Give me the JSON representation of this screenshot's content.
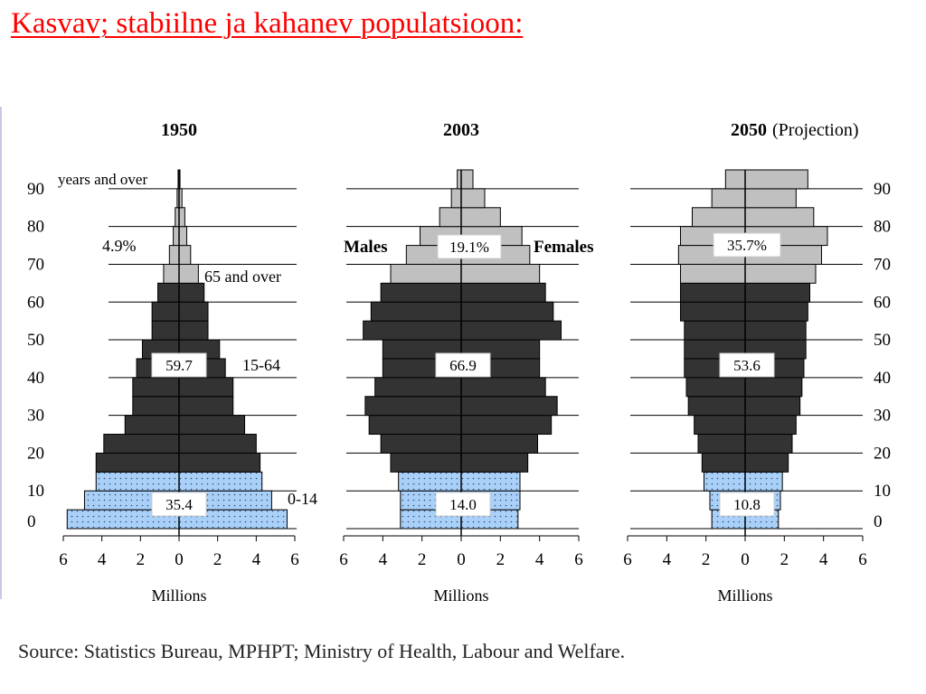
{
  "slide": {
    "title": "Kasvav; stabiilne ja kahanev populatsioon:",
    "source": "Source:  Statistics Bureau, MPHPT;  Ministry of Health, Labour and Welfare."
  },
  "colors": {
    "title": "#ff0000",
    "child_fill": "#a8d0f8",
    "working_fill": "#333333",
    "elderly_fill": "#c0c0c0"
  },
  "chart_data": [
    {
      "type": "bar",
      "orientation": "horizontal-pyramid",
      "year": "1950",
      "subtitle": "",
      "xlabel": "Millions",
      "x_ticks": [
        "6",
        "4",
        "2",
        "0",
        "2",
        "4",
        "6"
      ],
      "xlim": [
        -6,
        6
      ],
      "age_ticks": [
        "90",
        "80",
        "70",
        "60",
        "50",
        "40",
        "30",
        "20",
        "10",
        "0"
      ],
      "tick_label_side": "left",
      "age_groups": [
        "0-4",
        "5-9",
        "10-14",
        "15-19",
        "20-24",
        "25-29",
        "30-34",
        "35-39",
        "40-44",
        "45-49",
        "50-54",
        "55-59",
        "60-64",
        "65-69",
        "70-74",
        "75-79",
        "80-84",
        "85-89",
        "90+"
      ],
      "males": [
        5.8,
        4.9,
        4.3,
        4.3,
        3.9,
        2.8,
        2.4,
        2.4,
        2.2,
        1.9,
        1.4,
        1.4,
        1.1,
        0.8,
        0.5,
        0.3,
        0.2,
        0.1,
        0.05
      ],
      "females": [
        5.6,
        4.8,
        4.3,
        4.2,
        4.0,
        3.4,
        2.8,
        2.8,
        2.4,
        2.1,
        1.5,
        1.5,
        1.3,
        1.0,
        0.6,
        0.4,
        0.3,
        0.15,
        0.05
      ],
      "groups": [
        {
          "range": [
            0,
            3
          ],
          "fill": "child",
          "value_label": "35.4"
        },
        {
          "range": [
            3,
            13
          ],
          "fill": "working",
          "value_label": "59.7"
        },
        {
          "range": [
            13,
            19
          ],
          "fill": "elderly",
          "value_label": "4.9%"
        }
      ],
      "annotations": [
        "0-14",
        "15-64",
        "65 and over",
        "years and over"
      ]
    },
    {
      "type": "bar",
      "orientation": "horizontal-pyramid",
      "year": "2003",
      "subtitle": "",
      "xlabel": "Millions",
      "x_ticks": [
        "6",
        "4",
        "2",
        "0",
        "2",
        "4",
        "6"
      ],
      "xlim": [
        -6,
        6
      ],
      "age_ticks": [],
      "tick_label_side": "none",
      "age_groups": [
        "0-4",
        "5-9",
        "10-14",
        "15-19",
        "20-24",
        "25-29",
        "30-34",
        "35-39",
        "40-44",
        "45-49",
        "50-54",
        "55-59",
        "60-64",
        "65-69",
        "70-74",
        "75-79",
        "80-84",
        "85-89",
        "90+"
      ],
      "males": [
        3.1,
        3.1,
        3.2,
        3.6,
        4.1,
        4.7,
        4.9,
        4.4,
        4.0,
        4.0,
        5.0,
        4.6,
        4.1,
        3.6,
        2.8,
        2.1,
        1.1,
        0.5,
        0.2
      ],
      "females": [
        2.9,
        3.0,
        3.0,
        3.4,
        3.9,
        4.6,
        4.9,
        4.3,
        4.0,
        4.0,
        5.1,
        4.7,
        4.3,
        4.0,
        3.5,
        3.1,
        2.0,
        1.2,
        0.6
      ],
      "groups": [
        {
          "range": [
            0,
            3
          ],
          "fill": "child",
          "value_label": "14.0"
        },
        {
          "range": [
            3,
            13
          ],
          "fill": "working",
          "value_label": "66.9"
        },
        {
          "range": [
            13,
            19
          ],
          "fill": "elderly",
          "value_label": "19.1%"
        }
      ],
      "annotations": [
        "Males",
        "Females"
      ]
    },
    {
      "type": "bar",
      "orientation": "horizontal-pyramid",
      "year": "2050",
      "subtitle": "(Projection)",
      "xlabel": "Millions",
      "x_ticks": [
        "6",
        "4",
        "2",
        "0",
        "2",
        "4",
        "6"
      ],
      "xlim": [
        -6,
        6
      ],
      "age_ticks": [
        "90",
        "80",
        "70",
        "60",
        "50",
        "40",
        "30",
        "20",
        "10",
        "0"
      ],
      "tick_label_side": "right",
      "age_groups": [
        "0-4",
        "5-9",
        "10-14",
        "15-19",
        "20-24",
        "25-29",
        "30-34",
        "35-39",
        "40-44",
        "45-49",
        "50-54",
        "55-59",
        "60-64",
        "65-69",
        "70-74",
        "75-79",
        "80-84",
        "85-89",
        "90+"
      ],
      "males": [
        1.7,
        1.8,
        2.1,
        2.2,
        2.4,
        2.6,
        2.9,
        3.0,
        3.1,
        3.1,
        3.1,
        3.3,
        3.3,
        3.3,
        3.4,
        3.3,
        2.7,
        1.7,
        1.0
      ],
      "females": [
        1.7,
        1.8,
        1.9,
        2.2,
        2.4,
        2.6,
        2.8,
        2.9,
        3.0,
        3.1,
        3.1,
        3.2,
        3.3,
        3.6,
        3.9,
        4.2,
        3.5,
        2.6,
        3.2
      ],
      "groups": [
        {
          "range": [
            0,
            3
          ],
          "fill": "child",
          "value_label": "10.8"
        },
        {
          "range": [
            3,
            13
          ],
          "fill": "working",
          "value_label": "53.6"
        },
        {
          "range": [
            13,
            19
          ],
          "fill": "elderly",
          "value_label": "35.7%"
        }
      ],
      "annotations": []
    }
  ]
}
